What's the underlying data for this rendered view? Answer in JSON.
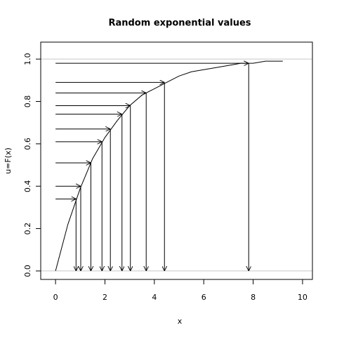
{
  "chart_data": {
    "type": "line",
    "title": "Random exponential values",
    "x_label": "x",
    "y_label": "u=F(x)",
    "x": [
      0,
      0.5,
      1,
      1.5,
      2,
      2.5,
      3,
      3.5,
      4,
      4.5,
      5,
      5.5,
      6,
      6.5,
      7,
      7.5,
      8,
      8.5,
      9,
      9.2
    ],
    "values": [
      0,
      0.22,
      0.39,
      0.53,
      0.63,
      0.71,
      0.78,
      0.83,
      0.86,
      0.89,
      0.92,
      0.94,
      0.95,
      0.96,
      0.97,
      0.98,
      0.98,
      0.99,
      0.99,
      0.99
    ],
    "color": "#000000",
    "samples": {
      "x": [
        0.83,
        1.02,
        1.43,
        1.88,
        2.22,
        2.69,
        3.03,
        3.67,
        4.41,
        7.82
      ],
      "u": [
        0.34,
        0.4,
        0.51,
        0.61,
        0.67,
        0.74,
        0.78,
        0.84,
        0.89,
        0.98
      ]
    },
    "hlines": [
      0,
      1
    ],
    "hline_color": "#c8c8c8",
    "xlim": [
      -0.6,
      10.4
    ],
    "ylim": [
      -0.04,
      1.08
    ],
    "xticks": [
      0,
      2,
      4,
      6,
      8,
      10
    ],
    "yticks": [
      {
        "value": 0,
        "label": "0.0"
      },
      0.2,
      0.4,
      0.6,
      0.8,
      {
        "value": 1,
        "label": "1.0"
      }
    ]
  }
}
